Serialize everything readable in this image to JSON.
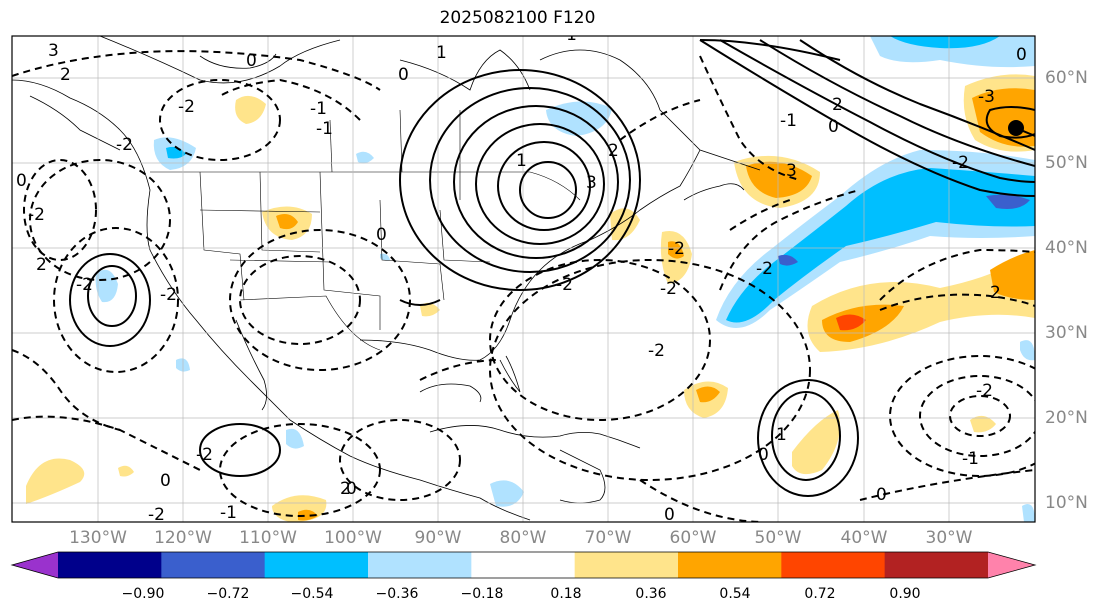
{
  "title": "2025082100 F120",
  "lon_labels": [
    "130°W",
    "120°W",
    "110°W",
    "100°W",
    "90°W",
    "80°W",
    "70°W",
    "60°W",
    "50°W",
    "40°W",
    "30°W"
  ],
  "lat_labels": [
    "60°N",
    "50°N",
    "40°N",
    "30°N",
    "20°N",
    "10°N"
  ],
  "colorbar": {
    "ticks": [
      "−0.90",
      "−0.72",
      "−0.54",
      "−0.36",
      "−0.18",
      "0.18",
      "0.36",
      "0.54",
      "0.72",
      "0.90"
    ],
    "colors": [
      "#9a32cd",
      "#00008b",
      "#3a5fcd",
      "#00bfff",
      "#b0e2ff",
      "#ffffff",
      "#ffe48b",
      "#ffa500",
      "#ff4500",
      "#b22222",
      "#ff82ab"
    ]
  },
  "contour_labels": [
    "3",
    "2",
    "0",
    "-2",
    "-1",
    "1",
    "0",
    "-2",
    "2",
    "-2",
    "3",
    "2",
    "-2",
    "-1",
    "0",
    "-2",
    "0",
    "-1",
    "0",
    "-2",
    "2",
    "-3",
    "-2",
    "-1",
    "0",
    "1",
    "0",
    "-1",
    "-2",
    "-2",
    "2",
    "3",
    "1",
    "-2",
    "-2",
    "0",
    "-2",
    "2",
    "0",
    "0",
    "0",
    "-2",
    "-2",
    "-1"
  ],
  "marker": "storm-center-dot"
}
